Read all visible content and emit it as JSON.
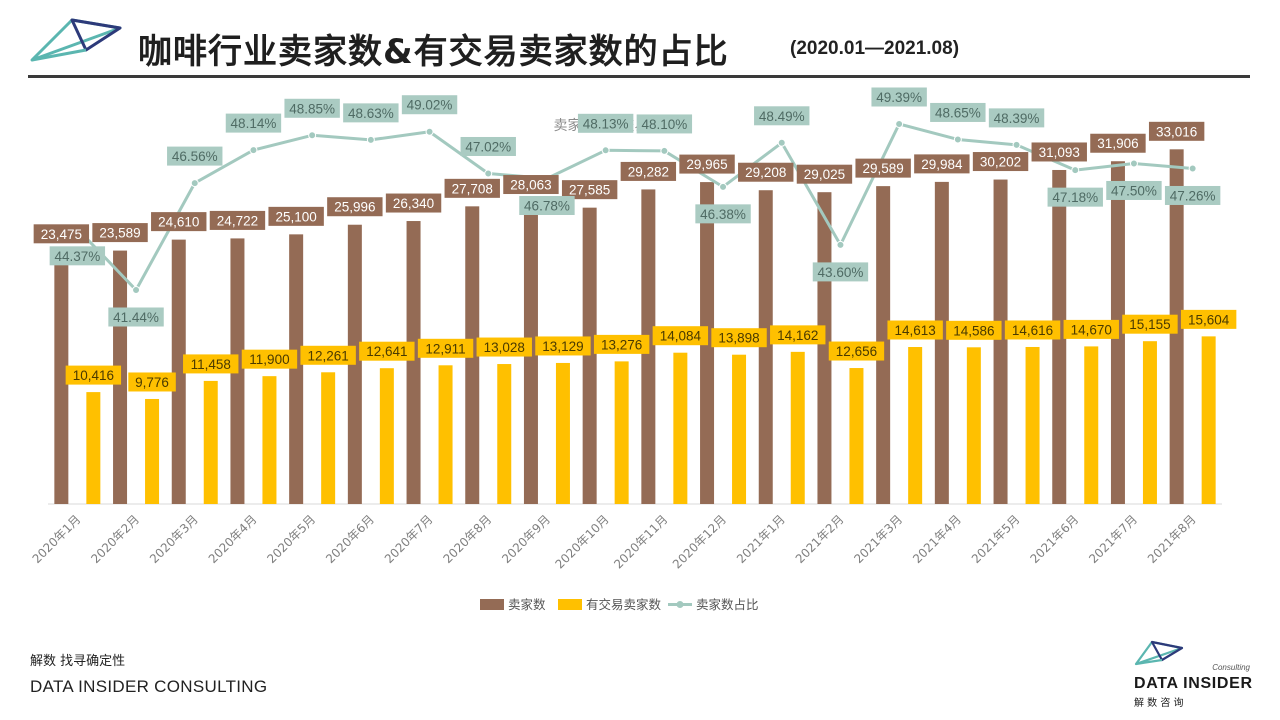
{
  "header": {
    "title": "咖啡行业卖家数&有交易卖家数的占比",
    "period": "(2020.01—2021.08)"
  },
  "footer": {
    "slogan_cn": "解数 找寻确定性",
    "company_en": "DATA INSIDER CONSULTING",
    "logo_consulting": "Consulting",
    "logo_name": "DATA INSIDER",
    "logo_cn": "解 数 咨 询"
  },
  "colors": {
    "sellers": "#946b55",
    "trading": "#ffc000",
    "ratio": "#a3c9bf",
    "ratio_label_bg": "#aacbc2",
    "logo_teal": "#5bb6b0",
    "logo_navy": "#2d3a7a"
  },
  "chart_data": {
    "type": "bar",
    "title": "卖家数&有交易卖家数",
    "categories": [
      "2020年1月",
      "2020年2月",
      "2020年3月",
      "2020年4月",
      "2020年5月",
      "2020年6月",
      "2020年7月",
      "2020年8月",
      "2020年9月",
      "2020年10月",
      "2020年11月",
      "2020年12月",
      "2021年1月",
      "2021年2月",
      "2021年3月",
      "2021年4月",
      "2021年5月",
      "2021年6月",
      "2021年7月",
      "2021年8月"
    ],
    "series": [
      {
        "name": "卖家数",
        "kind": "bar",
        "values": [
          23475,
          23589,
          24610,
          24722,
          25100,
          25996,
          26340,
          27708,
          28063,
          27585,
          29282,
          29965,
          29208,
          29025,
          29589,
          29984,
          30202,
          31093,
          31906,
          33016
        ],
        "labels": [
          "23,475",
          "23,589",
          "24,610",
          "24,722",
          "25,100",
          "25,996",
          "26,340",
          "27,708",
          "28,063",
          "27,585",
          "29,282",
          "29,965",
          "29,208",
          "29,025",
          "29,589",
          "29,984",
          "30,202",
          "31,093",
          "31,906",
          "33,016"
        ]
      },
      {
        "name": "有交易卖家数",
        "kind": "bar",
        "values": [
          10416,
          9776,
          11458,
          11900,
          12261,
          12641,
          12911,
          13028,
          13129,
          13276,
          14084,
          13898,
          14162,
          12656,
          14613,
          14586,
          14616,
          14670,
          15155,
          15604
        ],
        "labels": [
          "10,416",
          "9,776",
          "11,458",
          "11,900",
          "12,261",
          "12,641",
          "12,911",
          "13,028",
          "13,129",
          "13,276",
          "14,084",
          "13,898",
          "14,162",
          "12,656",
          "14,613",
          "14,586",
          "14,616",
          "14,670",
          "15,155",
          "15,604"
        ]
      },
      {
        "name": "卖家数占比",
        "kind": "line",
        "values": [
          44.37,
          41.44,
          46.56,
          48.14,
          48.85,
          48.63,
          49.02,
          47.02,
          46.78,
          48.13,
          48.1,
          46.38,
          48.49,
          43.6,
          49.39,
          48.65,
          48.39,
          47.18,
          47.5,
          47.26
        ],
        "labels": [
          "44.37%",
          "41.44%",
          "46.56%",
          "48.14%",
          "48.85%",
          "48.63%",
          "49.02%",
          "47.02%",
          "46.78%",
          "48.13%",
          "48.10%",
          "46.38%",
          "48.49%",
          "43.60%",
          "49.39%",
          "48.65%",
          "48.39%",
          "47.18%",
          "47.50%",
          "47.26%"
        ]
      }
    ],
    "y_bar_range": [
      0,
      35000
    ],
    "y_line_range": [
      30,
      51
    ],
    "grid": false,
    "legend_placement": "bottom"
  }
}
